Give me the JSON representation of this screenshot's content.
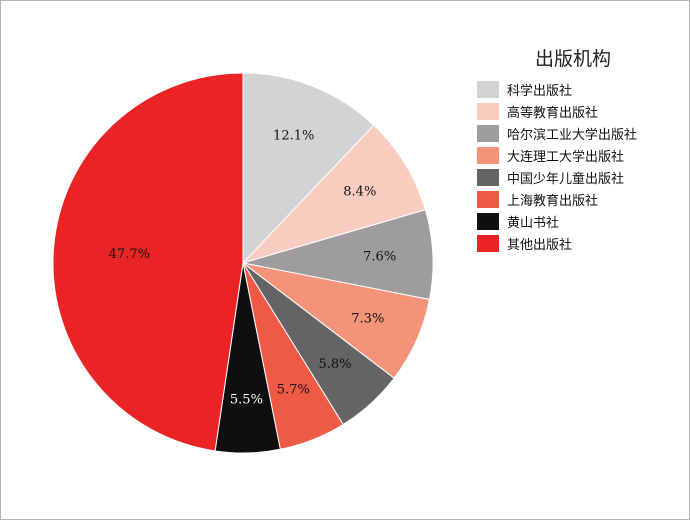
{
  "chart_data": {
    "type": "pie",
    "title": "",
    "legend": {
      "title": "出版机构",
      "placement": "right"
    },
    "slices": [
      {
        "name": "科学出版社",
        "value": 12.1,
        "label": "12.1%",
        "color": "#d3d3d5",
        "label_color": "#111111"
      },
      {
        "name": "高等教育出版社",
        "value": 8.4,
        "label": "8.4%",
        "color": "#f8cdbf",
        "label_color": "#111111"
      },
      {
        "name": "哈尔滨工业大学出版社",
        "value": 7.6,
        "label": "7.6%",
        "color": "#9e9c9e",
        "label_color": "#111111"
      },
      {
        "name": "大连理工大学出版社",
        "value": 7.3,
        "label": "7.3%",
        "color": "#f4937a",
        "label_color": "#111111"
      },
      {
        "name": "中国少年儿童出版社",
        "value": 5.8,
        "label": "5.8%",
        "color": "#646466",
        "label_color": "#111111"
      },
      {
        "name": "上海教育出版社",
        "value": 5.7,
        "label": "5.7%",
        "color": "#ee5a45",
        "label_color": "#111111"
      },
      {
        "name": "黄山书社",
        "value": 5.5,
        "label": "5.5%",
        "color": "#0f0f10",
        "label_color": "#ffffff"
      },
      {
        "name": "其他出版社",
        "value": 47.7,
        "label": "47.7%",
        "color": "#ea2424",
        "label_color": "#111111"
      }
    ]
  }
}
